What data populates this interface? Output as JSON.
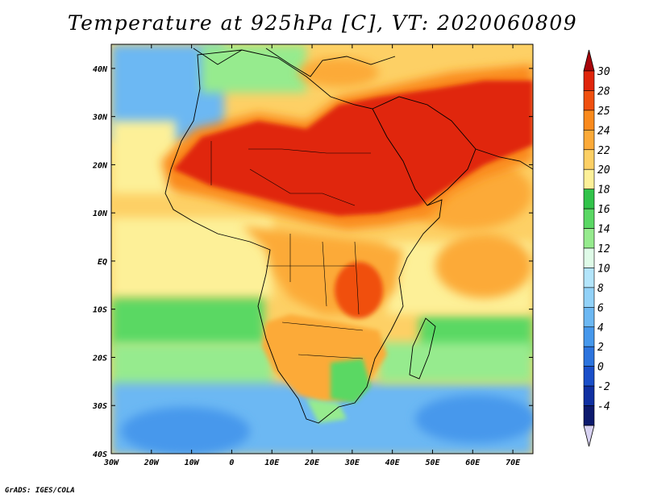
{
  "title": "Temperature at 925hPa [C], VT: 2020060809",
  "credit": "GrADS: IGES/COLA",
  "map": {
    "lon_range": [
      -30,
      75
    ],
    "lat_range": [
      -40,
      45
    ],
    "lon_ticks": [
      {
        "value": -30,
        "label": "30W"
      },
      {
        "value": -20,
        "label": "20W"
      },
      {
        "value": -10,
        "label": "10W"
      },
      {
        "value": 0,
        "label": "0"
      },
      {
        "value": 10,
        "label": "10E"
      },
      {
        "value": 20,
        "label": "20E"
      },
      {
        "value": 30,
        "label": "30E"
      },
      {
        "value": 40,
        "label": "40E"
      },
      {
        "value": 50,
        "label": "50E"
      },
      {
        "value": 60,
        "label": "60E"
      },
      {
        "value": 70,
        "label": "70E"
      }
    ],
    "lat_ticks": [
      {
        "value": 40,
        "label": "40N"
      },
      {
        "value": 30,
        "label": "30N"
      },
      {
        "value": 20,
        "label": "20N"
      },
      {
        "value": 10,
        "label": "10N"
      },
      {
        "value": 0,
        "label": "EQ"
      },
      {
        "value": -10,
        "label": "10S"
      },
      {
        "value": -20,
        "label": "20S"
      },
      {
        "value": -30,
        "label": "30S"
      },
      {
        "value": -40,
        "label": "40S"
      }
    ]
  },
  "colorbar": {
    "levels": [
      {
        "label": "30",
        "color": "#e0250b"
      },
      {
        "label": "28",
        "color": "#f0500f"
      },
      {
        "label": "25",
        "color": "#fa8a1c"
      },
      {
        "label": "24",
        "color": "#fcaa38"
      },
      {
        "label": "22",
        "color": "#fdd065"
      },
      {
        "label": "20",
        "color": "#fdf098"
      },
      {
        "label": "18",
        "color": "#31c34a"
      },
      {
        "label": "16",
        "color": "#5ad864"
      },
      {
        "label": "14",
        "color": "#96eb8e"
      },
      {
        "label": "12",
        "color": "#dffbe8"
      },
      {
        "label": "10",
        "color": "#b3e5fb"
      },
      {
        "label": "8",
        "color": "#92d2f8"
      },
      {
        "label": "6",
        "color": "#6cb8f3"
      },
      {
        "label": "4",
        "color": "#4698ec"
      },
      {
        "label": "2",
        "color": "#2c74de"
      },
      {
        "label": "0",
        "color": "#1a4fc9"
      },
      {
        "label": "-2",
        "color": "#1030a2"
      },
      {
        "label": "-4",
        "color": "#0d1a6e"
      }
    ],
    "above_color": "#a8050a",
    "below_color": "#d8d2f2"
  },
  "colors": {
    "ocean_cool": "#6cb8f3",
    "ocean_mild": "#96eb8e",
    "ocean_warm": "#fdf098",
    "land_hot": "#e0250b",
    "land_warm": "#fa8a1c",
    "land_mild": "#fdd065",
    "land_cool": "#5ad864"
  }
}
